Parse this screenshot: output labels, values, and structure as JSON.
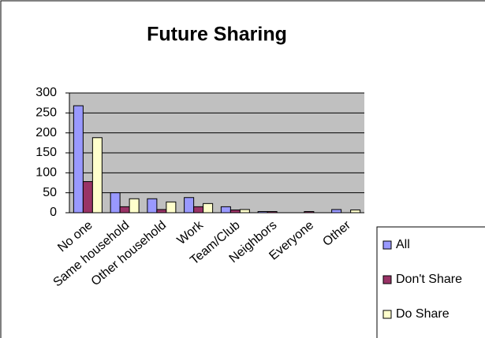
{
  "chart_data": {
    "type": "bar",
    "title": "Future Sharing",
    "categories": [
      "No one",
      "Same household",
      "Other household",
      "Work",
      "Team/Club",
      "Neighbors",
      "Everyone",
      "Other"
    ],
    "series": [
      {
        "name": "All",
        "color": "#9999ff",
        "values": [
          268,
          50,
          35,
          38,
          15,
          3,
          0,
          8
        ]
      },
      {
        "name": "Don't Share",
        "color": "#993366",
        "values": [
          78,
          15,
          8,
          15,
          7,
          3,
          3,
          0
        ]
      },
      {
        "name": "Do Share",
        "color": "#ffffcc",
        "values": [
          188,
          35,
          27,
          23,
          8,
          0,
          0,
          7
        ]
      }
    ],
    "ylim": [
      0,
      300
    ],
    "yticks": [
      0,
      50,
      100,
      150,
      200,
      250,
      300
    ],
    "grid": true,
    "legend": "right"
  }
}
